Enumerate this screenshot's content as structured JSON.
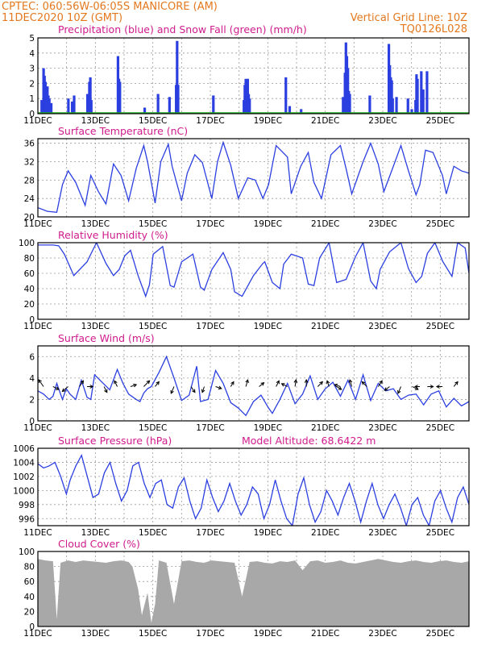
{
  "header": {
    "line1": "CPTEC:   060:56W-06:05S   MANICORE (AM)",
    "line2": "11DEC2020 10Z (GMT)",
    "grid_note": "Vertical Grid Line: 10Z",
    "model": "TQ0126L028"
  },
  "x_labels": [
    "11DEC",
    "13DEC",
    "15DEC",
    "17DEC",
    "19DEC",
    "21DEC",
    "23DEC",
    "25DEC"
  ],
  "colors": {
    "header": "#e3781e",
    "title": "#d01b8c",
    "series": "#2b3fe0",
    "snow": "#22aa22",
    "cloud": "#a8a8a8"
  },
  "chart_data": [
    {
      "type": "bar",
      "title": "Precipitation (blue) and Snow Fall (green) (mm/h)",
      "ylim": [
        0,
        5
      ],
      "yticks": [
        0,
        1,
        2,
        3,
        4,
        5
      ],
      "series": [
        {
          "name": "Precipitation",
          "color": "#2b3fe0",
          "points": [
            [
              0.2,
              0.9
            ],
            [
              0.3,
              3.0
            ],
            [
              0.35,
              2.5
            ],
            [
              0.4,
              2.1
            ],
            [
              0.45,
              1.4
            ],
            [
              0.5,
              1.8
            ],
            [
              0.55,
              1.2
            ],
            [
              0.6,
              1.0
            ],
            [
              0.7,
              0.7
            ],
            [
              1.6,
              1.0
            ],
            [
              1.8,
              0.8
            ],
            [
              1.9,
              1.2
            ],
            [
              2.6,
              1.3
            ],
            [
              2.7,
              2.1
            ],
            [
              2.75,
              2.4
            ],
            [
              2.8,
              0.9
            ],
            [
              4.2,
              3.8
            ],
            [
              4.25,
              2.3
            ],
            [
              4.3,
              2.1
            ],
            [
              5.6,
              0.4
            ],
            [
              6.3,
              1.3
            ],
            [
              6.9,
              1.1
            ],
            [
              7.25,
              1.9
            ],
            [
              7.3,
              4.8
            ],
            [
              7.35,
              1.9
            ],
            [
              9.2,
              1.2
            ],
            [
              10.8,
              0.9
            ],
            [
              10.85,
              1.9
            ],
            [
              10.9,
              2.3
            ],
            [
              10.95,
              1.5
            ],
            [
              11.0,
              2.3
            ],
            [
              11.05,
              1.3
            ],
            [
              11.1,
              1.0
            ],
            [
              13.0,
              2.4
            ],
            [
              13.2,
              0.5
            ],
            [
              13.8,
              0.3
            ],
            [
              16.0,
              1.1
            ],
            [
              16.1,
              2.7
            ],
            [
              16.15,
              4.7
            ],
            [
              16.2,
              3.8
            ],
            [
              16.25,
              3.0
            ],
            [
              16.3,
              1.5
            ],
            [
              16.35,
              1.3
            ],
            [
              17.4,
              1.2
            ],
            [
              18.4,
              4.6
            ],
            [
              18.45,
              3.2
            ],
            [
              18.5,
              2.4
            ],
            [
              18.55,
              2.2
            ],
            [
              18.6,
              1.0
            ],
            [
              18.8,
              1.1
            ],
            [
              19.4,
              1.0
            ],
            [
              19.6,
              0.3
            ],
            [
              19.8,
              0.9
            ],
            [
              19.85,
              2.6
            ],
            [
              19.9,
              2.3
            ],
            [
              20.1,
              2.8
            ],
            [
              20.2,
              1.6
            ],
            [
              20.4,
              2.8
            ]
          ]
        },
        {
          "name": "Snow Fall",
          "color": "#22aa22",
          "values": [
            0
          ]
        }
      ]
    },
    {
      "type": "line",
      "title": "Surface Temperature (nC)",
      "ylim": [
        20,
        37
      ],
      "yticks": [
        20,
        24,
        28,
        32,
        36
      ],
      "x": [
        0,
        0.5,
        1,
        1.3,
        1.6,
        2,
        2.5,
        2.8,
        3.2,
        3.6,
        4,
        4.4,
        4.8,
        5.2,
        5.6,
        5.8,
        6.2,
        6.5,
        6.9,
        7.1,
        7.6,
        7.9,
        8.3,
        8.7,
        9.2,
        9.5,
        9.8,
        10.2,
        10.6,
        11.1,
        11.5,
        11.9,
        12.2,
        12.6,
        13.2,
        13.4,
        13.9,
        14.3,
        14.6,
        15.0,
        15.5,
        16.0,
        16.3,
        16.6,
        17.2,
        17.6,
        18.0,
        18.3,
        18.8,
        19.2,
        19.6,
        20.0,
        20.2,
        20.5,
        20.9,
        21.4,
        21.6,
        22.0,
        22.4,
        22.8
      ],
      "values": [
        22.0,
        21.2,
        21.0,
        27.0,
        30.0,
        27.5,
        22.5,
        29.0,
        25.5,
        22.8,
        31.5,
        29.0,
        23.5,
        30.5,
        35.5,
        32.0,
        23.0,
        32.0,
        35.8,
        31.0,
        23.5,
        29.5,
        33.5,
        31.8,
        24.0,
        32.0,
        36.2,
        31.2,
        24.0,
        28.5,
        28.0,
        24.0,
        27.0,
        35.5,
        33.0,
        25.0,
        31.0,
        34.0,
        27.5,
        24.0,
        33.5,
        35.5,
        30.5,
        25.0,
        32.0,
        36.0,
        31.5,
        25.5,
        31.0,
        35.5,
        30.0,
        24.8,
        27.0,
        34.5,
        34.0,
        29.0,
        25.0,
        31.0,
        30.0,
        29.5
      ]
    },
    {
      "type": "line",
      "title": "Relative Humidity (%)",
      "ylim": [
        0,
        100
      ],
      "yticks": [
        0,
        20,
        40,
        60,
        80,
        100
      ],
      "x": [
        0,
        0.8,
        1.1,
        1.4,
        1.9,
        2.6,
        3.1,
        3.6,
        4.0,
        4.3,
        4.6,
        4.9,
        5.3,
        5.7,
        5.9,
        6.1,
        6.6,
        7.0,
        7.2,
        7.6,
        8.2,
        8.6,
        8.8,
        9.2,
        9.8,
        10.2,
        10.4,
        10.8,
        11.4,
        11.9,
        12.0,
        12.4,
        12.8,
        13.0,
        13.4,
        14.0,
        14.3,
        14.6,
        14.9,
        15.4,
        15.8,
        16.3,
        16.8,
        17.2,
        17.6,
        17.9,
        18.1,
        18.6,
        19.2,
        19.6,
        20.0,
        20.3,
        20.6,
        21.0,
        21.4,
        21.9,
        22.2,
        22.6,
        22.8
      ],
      "values": [
        97,
        97,
        96,
        85,
        57,
        75,
        100,
        73,
        57,
        65,
        83,
        90,
        57,
        30,
        45,
        85,
        95,
        44,
        42,
        75,
        85,
        42,
        38,
        65,
        87,
        65,
        36,
        30,
        57,
        73,
        75,
        48,
        40,
        72,
        85,
        80,
        46,
        44,
        80,
        100,
        48,
        52,
        82,
        100,
        50,
        40,
        65,
        88,
        100,
        66,
        48,
        56,
        86,
        100,
        76,
        56,
        100,
        93,
        60
      ]
    },
    {
      "type": "line",
      "title": "Surface Wind (m/s)",
      "ylim": [
        0,
        7
      ],
      "yticks": [
        0,
        2,
        4,
        6
      ],
      "x": [
        0,
        0.3,
        0.6,
        0.8,
        1.0,
        1.3,
        1.5,
        1.7,
        2.0,
        2.3,
        2.6,
        2.8,
        3.0,
        3.4,
        3.8,
        4.2,
        4.5,
        4.8,
        5.2,
        5.4,
        5.6,
        5.8,
        6.0,
        6.4,
        6.8,
        7.2,
        7.6,
        8.0,
        8.4,
        8.6,
        9.0,
        9.4,
        9.8,
        10.2,
        10.6,
        11.0,
        11.4,
        11.8,
        12.2,
        12.4,
        12.8,
        13.2,
        13.6,
        14.0,
        14.4,
        14.8,
        15.2,
        15.6,
        16.0,
        16.4,
        16.8,
        17.2,
        17.6,
        18.0,
        18.4,
        18.8,
        19.2,
        19.6,
        20.0,
        20.4,
        20.8,
        21.2,
        21.6,
        22.0,
        22.4,
        22.8
      ],
      "values": [
        2.8,
        2.5,
        2.0,
        2.3,
        3.5,
        2.0,
        3.0,
        2.5,
        2.0,
        3.8,
        2.2,
        2.0,
        4.3,
        3.6,
        2.9,
        4.8,
        3.5,
        2.5,
        2.0,
        1.8,
        2.6,
        3.0,
        3.2,
        4.5,
        6.0,
        4.0,
        1.9,
        2.4,
        5.1,
        1.8,
        2.0,
        4.7,
        3.5,
        1.7,
        1.2,
        0.5,
        1.8,
        2.4,
        1.2,
        0.7,
        2.0,
        3.5,
        1.6,
        2.5,
        4.2,
        2.0,
        3.0,
        3.6,
        2.3,
        3.8,
        2.0,
        4.3,
        1.9,
        3.5,
        2.8,
        3.0,
        2.0,
        2.4,
        2.5,
        1.5,
        2.5,
        2.8,
        1.3,
        2.1,
        1.4,
        1.8
      ],
      "arrows": [
        [
          0.3,
          -0.5,
          0.7
        ],
        [
          0.8,
          0.6,
          -0.3
        ],
        [
          1.6,
          -0.6,
          -0.5
        ],
        [
          2.2,
          0.4,
          0.6
        ],
        [
          2.6,
          0.6,
          0.0
        ],
        [
          3.5,
          0.3,
          -0.6
        ],
        [
          4.2,
          -0.3,
          0.6
        ],
        [
          4.9,
          0.6,
          0.2
        ],
        [
          5.6,
          0.6,
          0.6
        ],
        [
          6.2,
          0.4,
          0.5
        ],
        [
          7.2,
          -0.3,
          -0.7
        ],
        [
          8.1,
          0.4,
          -0.6
        ],
        [
          8.8,
          -0.2,
          -0.6
        ],
        [
          9.4,
          0.6,
          -0.2
        ],
        [
          10.2,
          0.3,
          0.5
        ],
        [
          11.0,
          0.2,
          0.7
        ],
        [
          11.7,
          0.5,
          0.4
        ],
        [
          12.6,
          0.3,
          0.6
        ],
        [
          13.2,
          -0.6,
          0.3
        ],
        [
          13.6,
          0.1,
          0.7
        ],
        [
          14.2,
          0.0,
          0.7
        ],
        [
          14.8,
          0.5,
          0.5
        ],
        [
          15.4,
          -0.2,
          0.6
        ],
        [
          15.8,
          0.5,
          -0.3
        ],
        [
          16.0,
          -0.6,
          0.2
        ],
        [
          16.6,
          -0.2,
          0.7
        ],
        [
          17.4,
          -0.5,
          0.5
        ],
        [
          18.0,
          0.4,
          0.6
        ],
        [
          18.6,
          -0.5,
          -0.4
        ],
        [
          19.2,
          -0.3,
          -0.7
        ],
        [
          19.8,
          0.6,
          -0.3
        ],
        [
          20.2,
          -0.5,
          0.0
        ],
        [
          20.6,
          0.6,
          0.0
        ],
        [
          21.4,
          -0.6,
          0.0
        ],
        [
          22.0,
          0.4,
          0.5
        ]
      ]
    },
    {
      "type": "line",
      "title": "Surface Pressure (hPa)",
      "annotation": "Model Altitude: 68.6422 m",
      "ylim": [
        995,
        1006
      ],
      "yticks": [
        996,
        998,
        1000,
        1002,
        1004,
        1006
      ],
      "x": [
        0,
        0.3,
        0.6,
        0.9,
        1.2,
        1.5,
        1.7,
        2.0,
        2.3,
        2.6,
        2.9,
        3.2,
        3.5,
        3.8,
        4.1,
        4.4,
        4.7,
        5.0,
        5.3,
        5.6,
        5.9,
        6.2,
        6.5,
        6.8,
        7.1,
        7.4,
        7.7,
        8.0,
        8.3,
        8.6,
        8.9,
        9.2,
        9.5,
        9.8,
        10.1,
        10.4,
        10.7,
        11.0,
        11.3,
        11.6,
        11.9,
        12.2,
        12.5,
        12.8,
        13.1,
        13.4,
        13.7,
        14.0,
        14.3,
        14.6,
        14.9,
        15.2,
        15.5,
        15.8,
        16.1,
        16.4,
        16.7,
        17.0,
        17.3,
        17.6,
        17.9,
        18.2,
        18.5,
        18.8,
        19.1,
        19.4,
        19.7,
        20.0,
        20.3,
        20.6,
        20.9,
        21.2,
        21.5,
        21.8,
        22.1,
        22.4,
        22.7
      ],
      "values": [
        1003.8,
        1003.2,
        1003.5,
        1004.0,
        1002.0,
        999.5,
        1001.5,
        1003.5,
        1005.0,
        1002.0,
        999.0,
        999.5,
        1002.5,
        1004.0,
        1001.0,
        998.5,
        1000.0,
        1003.5,
        1004.0,
        1001.0,
        999.0,
        1001.0,
        1001.5,
        998.0,
        997.5,
        1000.5,
        1001.8,
        998.5,
        996.0,
        997.5,
        1001.5,
        999.0,
        997.0,
        998.5,
        1001.0,
        998.5,
        996.5,
        998.0,
        1000.5,
        999.5,
        996.0,
        998.0,
        1001.5,
        998.5,
        996.0,
        995.0,
        999.5,
        1001.8,
        998.0,
        995.5,
        997.0,
        1000.0,
        998.5,
        996.5,
        999.0,
        1001.0,
        998.5,
        995.5,
        998.5,
        1001.0,
        998.0,
        996.0,
        998.0,
        999.5,
        997.5,
        995.0,
        998.0,
        999.0,
        996.5,
        995.0,
        998.5,
        1000.0,
        997.5,
        995.5,
        999.0,
        1000.5,
        998.0
      ]
    },
    {
      "type": "area",
      "title": "Cloud Cover (%)",
      "ylim": [
        0,
        100
      ],
      "yticks": [
        0,
        20,
        40,
        60,
        80,
        100
      ],
      "x": [
        0,
        0.4,
        0.8,
        1.0,
        1.2,
        1.6,
        2.0,
        2.4,
        2.8,
        3.2,
        3.6,
        4.0,
        4.4,
        4.8,
        5.0,
        5.3,
        5.5,
        5.8,
        6.0,
        6.2,
        6.4,
        6.8,
        7.2,
        7.6,
        8.0,
        8.4,
        8.8,
        9.2,
        9.6,
        10.0,
        10.4,
        10.8,
        11.2,
        11.6,
        12.0,
        12.4,
        12.8,
        13.2,
        13.6,
        14.0,
        14.4,
        14.8,
        15.2,
        15.6,
        16.0,
        16.4,
        16.8,
        17.2,
        17.6,
        18.0,
        18.4,
        18.8,
        19.2,
        19.6,
        20.0,
        20.4,
        20.8,
        21.2,
        21.6,
        22.0,
        22.4,
        22.8
      ],
      "values": [
        90,
        88,
        87,
        10,
        85,
        88,
        86,
        88,
        87,
        86,
        85,
        87,
        88,
        86,
        80,
        50,
        15,
        45,
        5,
        30,
        88,
        85,
        30,
        87,
        88,
        86,
        85,
        88,
        87,
        86,
        85,
        40,
        86,
        87,
        85,
        84,
        87,
        86,
        88,
        75,
        87,
        88,
        85,
        86,
        88,
        85,
        84,
        86,
        88,
        90,
        88,
        86,
        85,
        87,
        88,
        86,
        85,
        87,
        88,
        86,
        85,
        87
      ]
    }
  ]
}
